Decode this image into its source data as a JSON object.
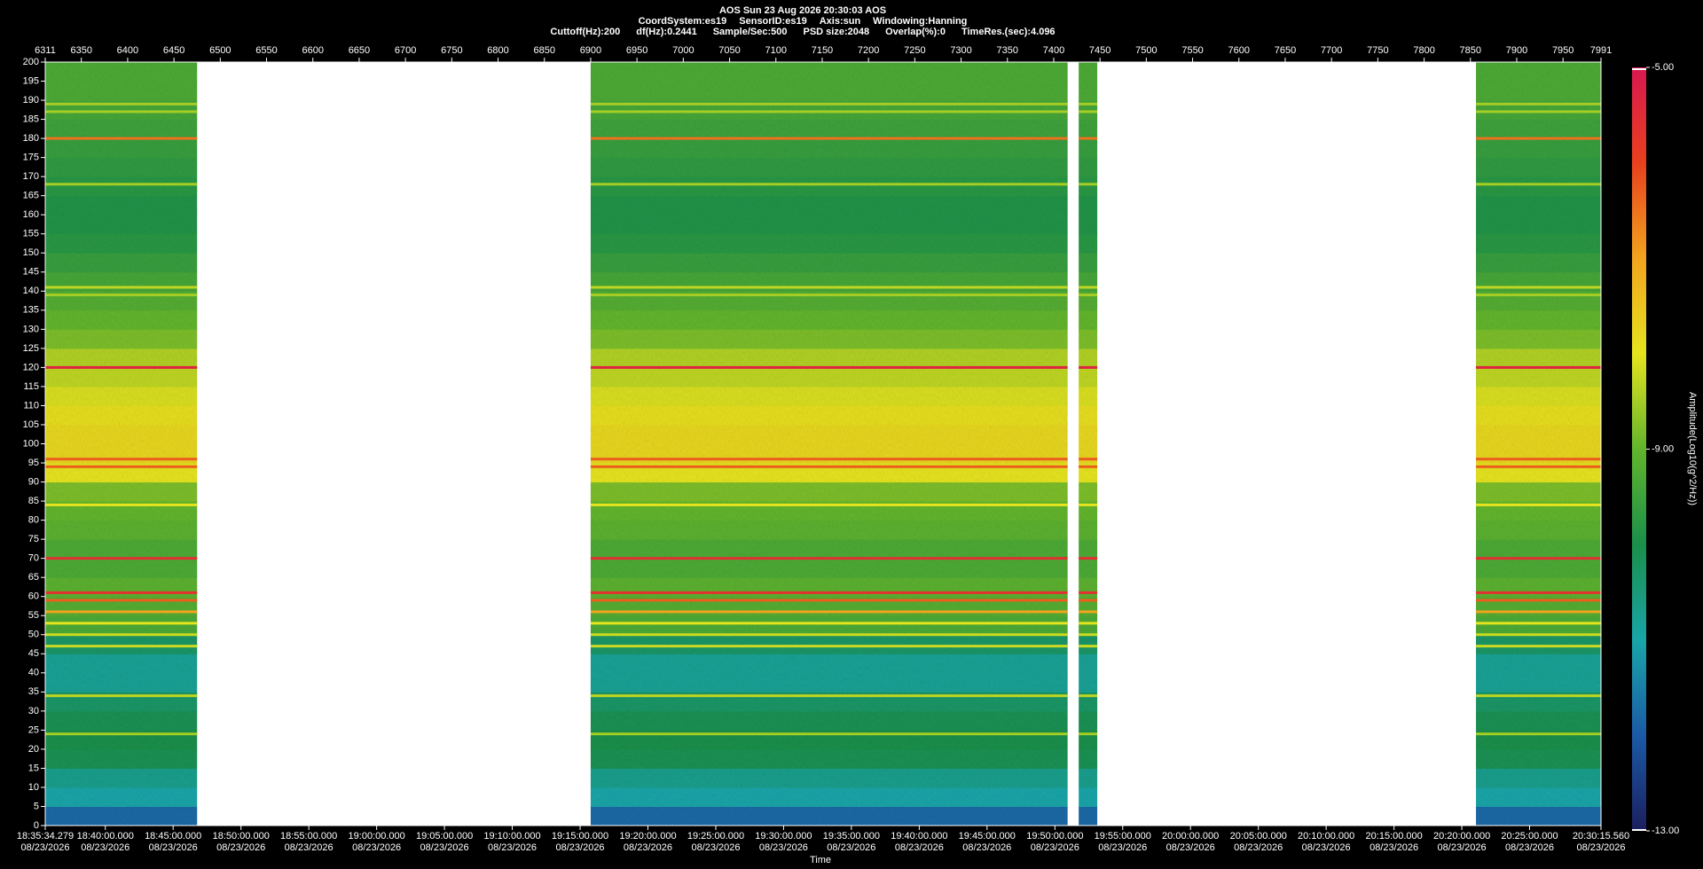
{
  "chart_data": {
    "type": "spectrogram",
    "header": {
      "title": "AOS  Sun 23 Aug 2026 20:30:03  AOS",
      "line2": [
        "CoordSystem:es19",
        "SensorID:es19",
        "Axis:sun",
        "Windowing:Hanning"
      ],
      "line3": [
        "Cuttoff(Hz):200",
        "df(Hz):0.2441",
        "Sample/Sec:500",
        "PSD size:2048",
        "Overlap(%):0",
        "TimeRes.(sec):4.096"
      ]
    },
    "x_label": "Time",
    "colorbar_label": "Amplitude(Log10(g^2/Hz))",
    "xlim": [
      6311,
      7991
    ],
    "xticks": [
      6311,
      6350,
      6400,
      6450,
      6500,
      6550,
      6600,
      6650,
      6700,
      6750,
      6800,
      6850,
      6900,
      6950,
      7000,
      7050,
      7100,
      7150,
      7200,
      7250,
      7300,
      7350,
      7400,
      7450,
      7500,
      7550,
      7600,
      7650,
      7700,
      7750,
      7800,
      7850,
      7900,
      7950,
      7991
    ],
    "time_ticks": [
      {
        "value": 6311,
        "label": "18:35:34.279"
      },
      {
        "value": 6375.9,
        "label": "18:40:00.000"
      },
      {
        "value": 6449.1,
        "label": "18:45:00.000"
      },
      {
        "value": 6522.4,
        "label": "18:50:00.000"
      },
      {
        "value": 6595.6,
        "label": "18:55:00.000"
      },
      {
        "value": 6668.9,
        "label": "19:00:00.000"
      },
      {
        "value": 6742.1,
        "label": "19:05:00.000"
      },
      {
        "value": 6815.3,
        "label": "19:10:00.000"
      },
      {
        "value": 6888.6,
        "label": "19:15:00.000"
      },
      {
        "value": 6961.8,
        "label": "19:20:00.000"
      },
      {
        "value": 7035.1,
        "label": "19:25:00.000"
      },
      {
        "value": 7108.3,
        "label": "19:30:00.000"
      },
      {
        "value": 7181.5,
        "label": "19:35:00.000"
      },
      {
        "value": 7254.8,
        "label": "19:40:00.000"
      },
      {
        "value": 7328.0,
        "label": "19:45:00.000"
      },
      {
        "value": 7401.3,
        "label": "19:50:00.000"
      },
      {
        "value": 7474.5,
        "label": "19:55:00.000"
      },
      {
        "value": 7547.7,
        "label": "20:00:00.000"
      },
      {
        "value": 7621.0,
        "label": "20:05:00.000"
      },
      {
        "value": 7694.2,
        "label": "20:10:00.000"
      },
      {
        "value": 7767.5,
        "label": "20:15:00.000"
      },
      {
        "value": 7840.7,
        "label": "20:20:00.000"
      },
      {
        "value": 7913.9,
        "label": "20:25:00.000"
      },
      {
        "value": 7991,
        "label": "20:30:15.560"
      }
    ],
    "time_tick_date": "08/23/2026",
    "ylim": [
      0,
      200
    ],
    "yticks": [
      0,
      5,
      10,
      15,
      20,
      25,
      30,
      35,
      40,
      45,
      50,
      55,
      60,
      65,
      70,
      75,
      80,
      85,
      90,
      95,
      100,
      105,
      110,
      115,
      120,
      125,
      130,
      135,
      140,
      145,
      150,
      155,
      160,
      165,
      170,
      175,
      180,
      185,
      190,
      195,
      200
    ],
    "segments": [
      {
        "start": 6311,
        "end": 6475
      },
      {
        "start": 6900,
        "end": 7415
      },
      {
        "start": 7427,
        "end": 7447
      },
      {
        "start": 7856,
        "end": 7991
      }
    ],
    "y_bins": [
      0,
      5,
      10,
      15,
      20,
      25,
      30,
      35,
      40,
      45,
      50,
      55,
      60,
      65,
      70,
      75,
      80,
      85,
      90,
      95,
      100,
      105,
      110,
      115,
      120,
      125,
      130,
      135,
      140,
      145,
      150,
      155,
      160,
      165,
      170,
      175,
      180,
      185,
      190,
      195,
      200
    ],
    "amplitude": [
      -11.8,
      -11.0,
      -10.7,
      -10.1,
      -10.0,
      -10.1,
      -10.3,
      -10.8,
      -10.8,
      -10.3,
      -9.3,
      -9.2,
      -9.1,
      -9.3,
      -9.3,
      -9.1,
      -9.0,
      -8.8,
      -8.0,
      -7.8,
      -7.8,
      -7.9,
      -8.1,
      -8.3,
      -8.4,
      -8.8,
      -9.0,
      -9.2,
      -9.4,
      -9.6,
      -9.8,
      -9.9,
      -9.9,
      -9.8,
      -9.7,
      -9.6,
      -9.5,
      -9.4,
      -9.3,
      -9.3
    ],
    "tones": {
      "freqs": [
        189,
        187,
        180,
        168,
        141,
        139,
        120,
        96,
        94,
        84,
        70,
        61,
        59,
        56,
        53,
        50,
        47,
        34,
        24
      ],
      "amplitude": [
        -8.5,
        -8.5,
        -6.5,
        -8.5,
        -8.3,
        -8.5,
        -5.3,
        -6.3,
        -6.3,
        -8.0,
        -5.6,
        -5.6,
        -6.3,
        -7.0,
        -8.0,
        -8.2,
        -8.2,
        -8.3,
        -8.5
      ]
    },
    "clim": [
      -13,
      -5
    ],
    "cticks": [
      {
        "value": -13,
        "label": "-13.00"
      },
      {
        "value": -9,
        "label": "-9.00"
      },
      {
        "value": -5,
        "label": "-5.00"
      }
    ],
    "colormap": [
      "#1b1f5e",
      "#1b5aa6",
      "#19a5a8",
      "#1a8f4a",
      "#62b52c",
      "#e6e41e",
      "#f2a31e",
      "#e8401e",
      "#d81850"
    ]
  }
}
